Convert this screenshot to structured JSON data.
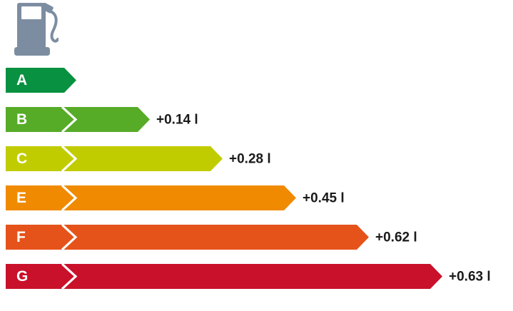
{
  "page": {
    "background": "#ffffff"
  },
  "fuel_pump": {
    "icon": "fuel-pump-icon",
    "color": "#7c8da2"
  },
  "chart_data": {
    "type": "bar",
    "orientation": "horizontal",
    "title": "",
    "xlabel": "",
    "ylabel": "",
    "unit": "l",
    "categories": [
      "A",
      "B",
      "C",
      "E",
      "F",
      "G"
    ],
    "values": [
      0,
      0.14,
      0.28,
      0.45,
      0.62,
      0.63
    ],
    "value_labels": [
      "",
      "+0.14 l",
      "+0.28 l",
      "+0.45 l",
      "+0.62 l",
      "+0.63 l"
    ],
    "bar_colors": [
      "#089140",
      "#56ab27",
      "#c1cc00",
      "#f08a00",
      "#e5531a",
      "#c9112b"
    ],
    "letter_color": "#ffffff",
    "value_text_color": "#1a1a1a",
    "chevron_color": "#ffffff",
    "reference_category": "A",
    "xlim": [
      0,
      0.63
    ],
    "grid": false,
    "legend": false
  }
}
